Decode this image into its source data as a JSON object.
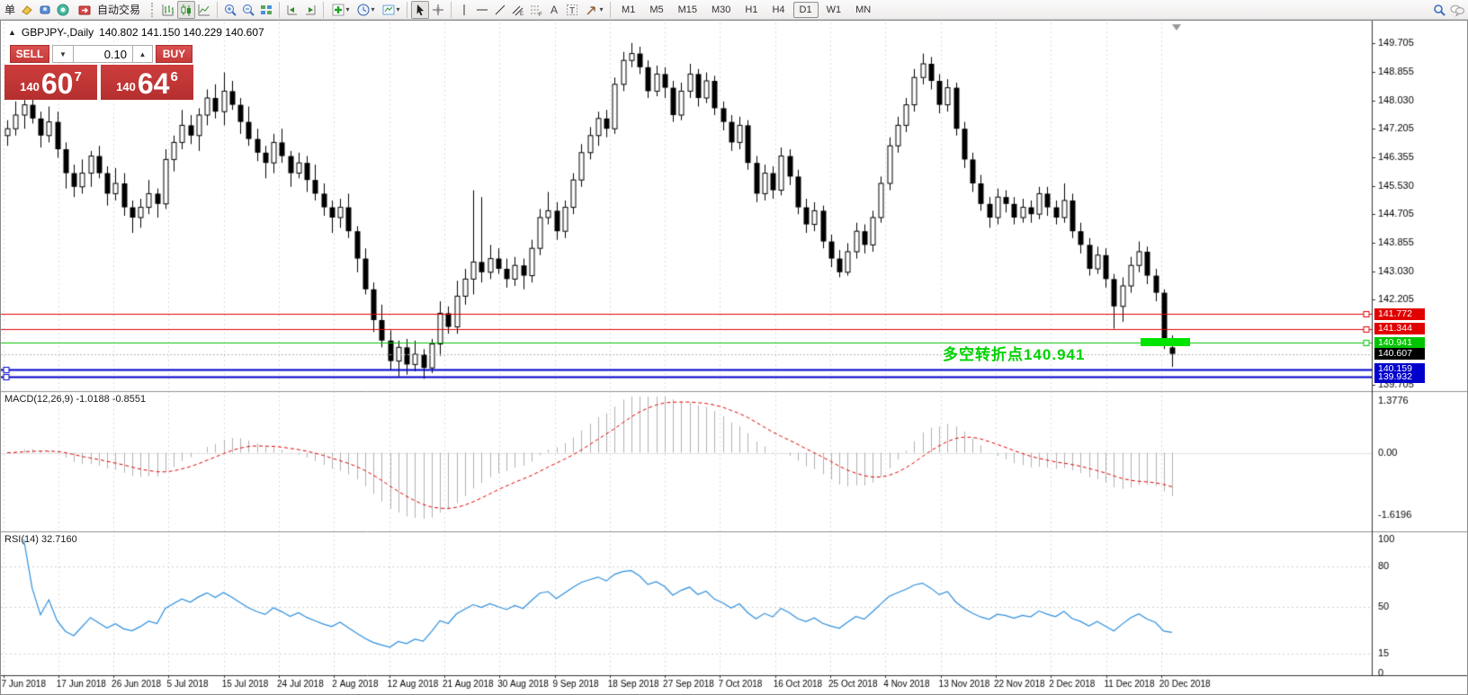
{
  "toolbar": {
    "left_text": "单",
    "auto_trading_label": "自动交易",
    "timeframes": [
      "M1",
      "M5",
      "M15",
      "M30",
      "H1",
      "H4",
      "D1",
      "W1",
      "MN"
    ],
    "active_timeframe": "D1"
  },
  "chart_header": {
    "symbol_title": "GBPJPY-,Daily",
    "ohlc": "140.802 141.150 140.229 140.607"
  },
  "one_click": {
    "sell_label": "SELL",
    "buy_label": "BUY",
    "lot_size": "0.10",
    "sell_small": "140",
    "sell_big": "60",
    "sell_sup": "7",
    "buy_small": "140",
    "buy_big": "64",
    "buy_sup": "6"
  },
  "indicators": {
    "macd_label": "MACD(12,26,9) -1.0188 -0.8551",
    "rsi_label": "RSI(14) 32.7160"
  },
  "annotation": {
    "text": "多空转折点140.941",
    "color": "#00d200"
  },
  "chart_data": {
    "type": "candlestick",
    "symbol": "GBPJPY",
    "timeframe": "Daily",
    "ylim": [
      139.705,
      149.705
    ],
    "price_ticks": [
      "149.705",
      "148.855",
      "148.030",
      "147.205",
      "146.355",
      "145.530",
      "144.705",
      "143.855",
      "143.030",
      "142.205",
      "139.705"
    ],
    "date_labels": [
      "7 Jun 2018",
      "17 Jun 2018",
      "26 Jun 2018",
      "5 Jul 2018",
      "15 Jul 2018",
      "24 Jul 2018",
      "2 Aug 2018",
      "12 Aug 2018",
      "21 Aug 2018",
      "30 Aug 2018",
      "9 Sep 2018",
      "18 Sep 2018",
      "27 Sep 2018",
      "7 Oct 2018",
      "16 Oct 2018",
      "25 Oct 2018",
      "4 Nov 2018",
      "13 Nov 2018",
      "22 Nov 2018",
      "2 Dec 2018",
      "11 Dec 2018",
      "20 Dec 2018"
    ],
    "levels": [
      {
        "value": "141.772",
        "num": 141.772,
        "color": "#e00000",
        "handle": "right"
      },
      {
        "value": "141.344",
        "num": 141.344,
        "color": "#e00000",
        "handle": "right"
      },
      {
        "value": "140.941",
        "num": 140.941,
        "color": "#00c400",
        "handle": "right"
      },
      {
        "value": "140.607",
        "num": 140.607,
        "color": "#000000",
        "handle": "bid"
      },
      {
        "value": "140.159",
        "num": 140.159,
        "color": "#0000cc",
        "handle": "left"
      },
      {
        "value": "139.932",
        "num": 139.932,
        "color": "#0000cc",
        "handle": "left"
      }
    ],
    "macd": {
      "params": "12,26,9",
      "value": -1.0188,
      "signal": -0.8551,
      "ylim": [
        -1.6196,
        1.3776
      ],
      "ticks": [
        "1.3776",
        "0.00",
        "-1.6196"
      ]
    },
    "rsi": {
      "period": 14,
      "value": 32.716,
      "ticks": [
        100,
        80,
        50,
        15,
        0
      ],
      "dashed_levels": [
        80,
        50,
        15
      ]
    },
    "candles": [
      [
        147.0,
        147.45,
        146.7,
        147.2
      ],
      [
        147.2,
        148.0,
        147.0,
        147.6
      ],
      [
        147.6,
        148.05,
        147.2,
        147.9
      ],
      [
        147.9,
        148.2,
        147.35,
        147.5
      ],
      [
        147.5,
        147.7,
        146.65,
        147.0
      ],
      [
        147.0,
        147.85,
        146.8,
        147.4
      ],
      [
        147.4,
        147.7,
        146.35,
        146.6
      ],
      [
        146.6,
        146.8,
        145.45,
        145.9
      ],
      [
        145.9,
        146.15,
        145.2,
        145.5
      ],
      [
        145.5,
        146.3,
        145.3,
        145.9
      ],
      [
        145.9,
        146.55,
        145.5,
        146.4
      ],
      [
        146.4,
        146.7,
        145.75,
        145.9
      ],
      [
        145.9,
        146.1,
        144.95,
        145.3
      ],
      [
        145.3,
        146.05,
        145.1,
        145.6
      ],
      [
        145.6,
        145.9,
        144.65,
        144.9
      ],
      [
        144.9,
        145.1,
        144.15,
        144.6
      ],
      [
        144.6,
        145.15,
        144.3,
        144.9
      ],
      [
        144.9,
        145.7,
        144.7,
        145.3
      ],
      [
        145.3,
        145.45,
        144.6,
        145.0
      ],
      [
        145.0,
        146.6,
        144.85,
        146.3
      ],
      [
        146.3,
        147.0,
        145.95,
        146.8
      ],
      [
        146.8,
        147.75,
        146.6,
        147.3
      ],
      [
        147.3,
        147.6,
        146.75,
        147.0
      ],
      [
        147.0,
        147.8,
        146.55,
        147.6
      ],
      [
        147.6,
        148.35,
        147.3,
        148.1
      ],
      [
        148.1,
        148.5,
        147.5,
        147.7
      ],
      [
        147.7,
        148.85,
        147.3,
        148.3
      ],
      [
        148.3,
        148.6,
        147.75,
        147.9
      ],
      [
        147.9,
        148.1,
        147.05,
        147.4
      ],
      [
        147.4,
        147.85,
        146.7,
        146.9
      ],
      [
        146.9,
        147.2,
        146.25,
        146.5
      ],
      [
        146.5,
        146.7,
        145.75,
        146.2
      ],
      [
        146.2,
        147.05,
        145.9,
        146.8
      ],
      [
        146.8,
        147.2,
        146.2,
        146.4
      ],
      [
        146.4,
        146.55,
        145.5,
        145.9
      ],
      [
        145.9,
        146.5,
        145.75,
        146.2
      ],
      [
        146.2,
        146.4,
        145.35,
        145.7
      ],
      [
        145.7,
        146.15,
        145.1,
        145.3
      ],
      [
        145.3,
        145.6,
        144.65,
        144.9
      ],
      [
        144.9,
        145.1,
        144.15,
        144.6
      ],
      [
        144.6,
        145.15,
        144.3,
        144.9
      ],
      [
        144.9,
        145.3,
        144.0,
        144.2
      ],
      [
        144.2,
        144.35,
        143.0,
        143.4
      ],
      [
        143.4,
        143.7,
        142.35,
        142.5
      ],
      [
        142.5,
        142.7,
        141.25,
        141.6
      ],
      [
        141.6,
        142.05,
        140.8,
        141.0
      ],
      [
        141.0,
        141.3,
        140.15,
        140.4
      ],
      [
        140.4,
        141.0,
        139.95,
        140.8
      ],
      [
        140.8,
        141.05,
        140.0,
        140.3
      ],
      [
        140.3,
        141.0,
        140.1,
        140.6
      ],
      [
        140.6,
        140.75,
        139.88,
        140.2
      ],
      [
        140.2,
        141.05,
        140.05,
        140.9
      ],
      [
        140.9,
        142.15,
        140.55,
        141.8
      ],
      [
        141.8,
        142.0,
        141.2,
        141.4
      ],
      [
        141.4,
        142.75,
        141.2,
        142.3
      ],
      [
        142.3,
        143.1,
        142.05,
        142.8
      ],
      [
        142.8,
        145.4,
        142.35,
        143.3
      ],
      [
        143.3,
        145.2,
        142.7,
        143.0
      ],
      [
        143.0,
        143.8,
        142.8,
        143.4
      ],
      [
        143.4,
        143.7,
        142.95,
        143.1
      ],
      [
        143.1,
        143.4,
        142.55,
        142.8
      ],
      [
        142.8,
        143.45,
        142.6,
        143.2
      ],
      [
        143.2,
        143.4,
        142.5,
        142.9
      ],
      [
        142.9,
        143.95,
        142.7,
        143.7
      ],
      [
        143.7,
        144.85,
        143.5,
        144.6
      ],
      [
        144.6,
        145.35,
        144.4,
        144.8
      ],
      [
        144.8,
        145.05,
        143.95,
        144.2
      ],
      [
        144.2,
        145.1,
        144.0,
        144.9
      ],
      [
        144.9,
        145.9,
        144.7,
        145.7
      ],
      [
        145.7,
        146.75,
        145.5,
        146.5
      ],
      [
        146.5,
        147.25,
        146.3,
        147.0
      ],
      [
        147.0,
        147.7,
        146.7,
        147.5
      ],
      [
        147.5,
        147.75,
        146.95,
        147.2
      ],
      [
        147.2,
        148.7,
        147.05,
        148.5
      ],
      [
        148.5,
        149.45,
        148.3,
        149.2
      ],
      [
        149.2,
        149.71,
        149.0,
        149.4
      ],
      [
        149.4,
        149.6,
        148.8,
        149.0
      ],
      [
        149.0,
        149.2,
        148.1,
        148.3
      ],
      [
        148.3,
        149.05,
        148.15,
        148.8
      ],
      [
        148.8,
        149.0,
        148.1,
        148.4
      ],
      [
        148.4,
        148.6,
        147.4,
        147.6
      ],
      [
        147.6,
        148.55,
        147.45,
        148.3
      ],
      [
        148.3,
        149.1,
        148.1,
        148.8
      ],
      [
        148.8,
        148.95,
        147.85,
        148.1
      ],
      [
        148.1,
        148.85,
        147.95,
        148.6
      ],
      [
        148.6,
        148.75,
        147.6,
        147.8
      ],
      [
        147.8,
        148.0,
        147.15,
        147.4
      ],
      [
        147.4,
        147.6,
        146.55,
        146.8
      ],
      [
        146.8,
        147.55,
        146.6,
        147.3
      ],
      [
        147.3,
        147.45,
        146.0,
        146.2
      ],
      [
        146.2,
        146.4,
        145.05,
        145.3
      ],
      [
        145.3,
        146.15,
        145.1,
        145.9
      ],
      [
        145.9,
        146.1,
        145.15,
        145.4
      ],
      [
        145.4,
        146.65,
        145.25,
        146.4
      ],
      [
        146.4,
        146.6,
        145.55,
        145.8
      ],
      [
        145.8,
        146.0,
        144.7,
        144.9
      ],
      [
        144.9,
        145.15,
        144.15,
        144.4
      ],
      [
        144.4,
        145.05,
        144.2,
        144.8
      ],
      [
        144.8,
        144.95,
        143.7,
        143.9
      ],
      [
        143.9,
        144.1,
        143.15,
        143.4
      ],
      [
        143.4,
        143.65,
        142.85,
        143.0
      ],
      [
        143.0,
        143.85,
        142.9,
        143.6
      ],
      [
        143.6,
        144.45,
        143.4,
        144.2
      ],
      [
        144.2,
        144.4,
        143.55,
        143.8
      ],
      [
        143.8,
        144.8,
        143.6,
        144.6
      ],
      [
        144.6,
        145.8,
        144.45,
        145.6
      ],
      [
        145.6,
        146.95,
        145.4,
        146.7
      ],
      [
        146.7,
        147.55,
        146.5,
        147.3
      ],
      [
        147.3,
        148.1,
        147.1,
        147.9
      ],
      [
        147.9,
        148.95,
        147.7,
        148.7
      ],
      [
        148.7,
        149.4,
        148.5,
        149.1
      ],
      [
        149.1,
        149.3,
        148.35,
        148.6
      ],
      [
        148.6,
        148.8,
        147.65,
        147.9
      ],
      [
        147.9,
        148.65,
        147.7,
        148.4
      ],
      [
        148.4,
        148.55,
        147.0,
        147.2
      ],
      [
        147.2,
        147.4,
        146.05,
        146.3
      ],
      [
        146.3,
        146.5,
        145.35,
        145.6
      ],
      [
        145.6,
        145.85,
        144.8,
        145.0
      ],
      [
        145.0,
        145.2,
        144.3,
        144.6
      ],
      [
        144.6,
        145.45,
        144.4,
        145.2
      ],
      [
        145.2,
        145.4,
        144.75,
        145.0
      ],
      [
        145.0,
        145.2,
        144.4,
        144.6
      ],
      [
        144.6,
        145.15,
        144.45,
        144.9
      ],
      [
        144.9,
        145.1,
        144.45,
        144.7
      ],
      [
        144.7,
        145.5,
        144.55,
        145.3
      ],
      [
        145.3,
        145.5,
        144.65,
        144.9
      ],
      [
        144.9,
        145.1,
        144.4,
        144.6
      ],
      [
        144.6,
        145.6,
        144.45,
        145.1
      ],
      [
        145.1,
        145.3,
        144.0,
        144.2
      ],
      [
        144.2,
        144.45,
        143.55,
        143.8
      ],
      [
        143.8,
        144.0,
        142.9,
        143.1
      ],
      [
        143.1,
        143.75,
        142.95,
        143.5
      ],
      [
        143.5,
        143.7,
        142.55,
        142.8
      ],
      [
        142.8,
        142.95,
        141.35,
        142.0
      ],
      [
        142.0,
        142.85,
        141.55,
        142.6
      ],
      [
        142.6,
        143.45,
        142.4,
        143.2
      ],
      [
        143.2,
        143.9,
        143.0,
        143.6
      ],
      [
        143.6,
        143.75,
        142.65,
        142.9
      ],
      [
        142.9,
        143.1,
        142.15,
        142.4
      ],
      [
        142.4,
        142.5,
        140.75,
        140.9
      ],
      [
        140.8,
        141.15,
        140.23,
        140.61
      ]
    ]
  }
}
